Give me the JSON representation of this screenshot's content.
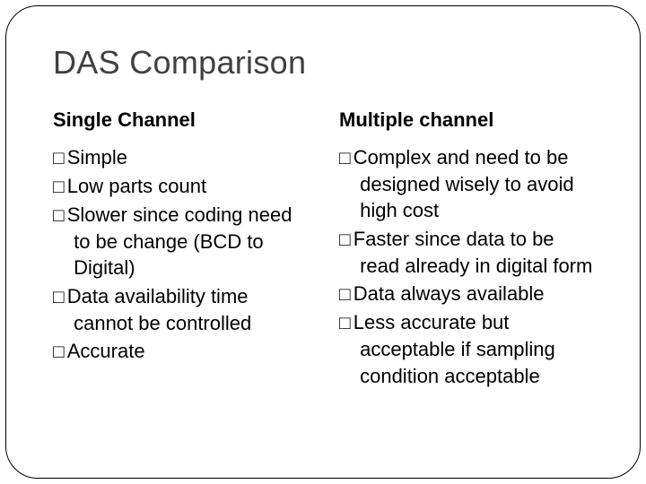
{
  "title": "DAS Comparison",
  "left": {
    "header": "Single Channel",
    "items": [
      "Simple",
      "Low parts count",
      "Slower since coding need to be change (BCD to Digital)",
      "Data availability time cannot be controlled",
      "Accurate"
    ]
  },
  "right": {
    "header": "Multiple channel",
    "items": [
      "Complex and need to be designed wisely to avoid high cost",
      "Faster since data to be read already in digital form",
      "Data always available",
      "Less accurate but acceptable if sampling condition acceptable"
    ]
  }
}
